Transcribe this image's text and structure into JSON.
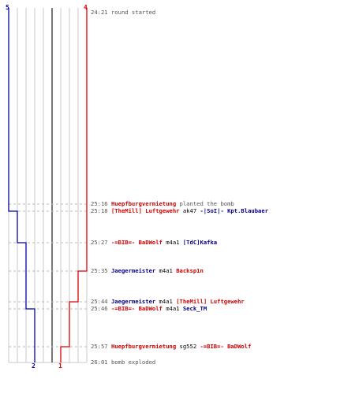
{
  "colors": {
    "t_team": "#0000aa",
    "ct_team": "#dd0000",
    "grid": "#c8c8c8",
    "center_line": "#777777",
    "dash": "#bbbbbb",
    "time_text": "#555555",
    "red_name": "#cc0000",
    "blue_name": "#000088",
    "weapon": "#000000"
  },
  "counts": {
    "blue_start": "5",
    "red_start": "4",
    "blue_end": "2",
    "red_end": "1"
  },
  "events": [
    {
      "time": "24:21",
      "parts": [
        {
          "text": "round started",
          "style": "gray"
        }
      ]
    },
    {
      "time": "25:16",
      "parts": [
        {
          "text": "Huepfburgvermietung",
          "style": "red"
        },
        {
          "text": " planted the bomb",
          "style": "gray"
        }
      ]
    },
    {
      "time": "25:18",
      "parts": [
        {
          "text": "[TheMill] Luftgewehr",
          "style": "red"
        },
        {
          "text": " ak47 ",
          "style": "black"
        },
        {
          "text": "-|SoI|- Kpt.Blaubaer",
          "style": "blue"
        }
      ]
    },
    {
      "time": "25:27",
      "parts": [
        {
          "text": "-=BIB=- BaDWolf",
          "style": "red"
        },
        {
          "text": " m4a1 ",
          "style": "black"
        },
        {
          "text": "[TdC]Kafka",
          "style": "blue"
        }
      ]
    },
    {
      "time": "25:35",
      "parts": [
        {
          "text": "Jaegermeister",
          "style": "blue"
        },
        {
          "text": " m4a1 ",
          "style": "black"
        },
        {
          "text": "Backsp1n",
          "style": "red"
        }
      ]
    },
    {
      "time": "25:44",
      "parts": [
        {
          "text": "Jaegermeister",
          "style": "blue"
        },
        {
          "text": " m4a1 ",
          "style": "black"
        },
        {
          "text": "[TheMill] Luftgewehr",
          "style": "red"
        }
      ]
    },
    {
      "time": "25:46",
      "parts": [
        {
          "text": "-=BIB=- BaDWolf",
          "style": "red"
        },
        {
          "text": " m4a1 ",
          "style": "black"
        },
        {
          "text": "Seck_TM",
          "style": "blue"
        }
      ]
    },
    {
      "time": "25:57",
      "parts": [
        {
          "text": "Huepfburgvermietung",
          "style": "red"
        },
        {
          "text": " sg552 ",
          "style": "black"
        },
        {
          "text": "-=BIB=- BaDWolf",
          "style": "red"
        }
      ]
    },
    {
      "time": "26:01",
      "parts": [
        {
          "text": "bomb exploded",
          "style": "gray"
        }
      ]
    }
  ],
  "chart_data": {
    "type": "line",
    "series": [
      {
        "points": [
          {
            "time": "24:21",
            "alive": 5
          },
          {
            "time": "25:18",
            "alive": 4
          },
          {
            "time": "25:27",
            "alive": 3
          },
          {
            "time": "25:46",
            "alive": 2
          },
          {
            "time": "26:01",
            "alive": 2
          }
        ]
      },
      {
        "points": [
          {
            "time": "24:21",
            "alive": 4
          },
          {
            "time": "25:35",
            "alive": 3
          },
          {
            "time": "25:44",
            "alive": 2
          },
          {
            "time": "25:57",
            "alive": 1
          },
          {
            "time": "26:01",
            "alive": 1
          }
        ]
      }
    ]
  }
}
